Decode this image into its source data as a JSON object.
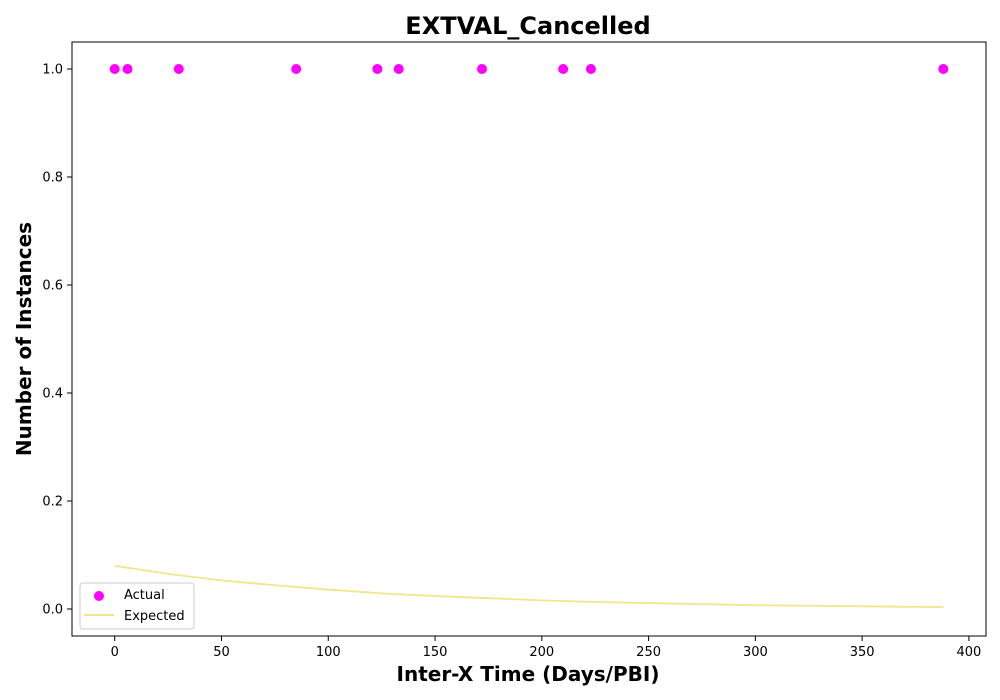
{
  "chart_data": {
    "type": "scatter",
    "title": "EXTVAL_Cancelled",
    "xlabel": "Inter-X Time (Days/PBI)",
    "ylabel": "Number of Instances",
    "xlim": [
      -20,
      408
    ],
    "ylim": [
      -0.05,
      1.05
    ],
    "xticks": [
      0,
      50,
      100,
      150,
      200,
      250,
      300,
      350,
      400
    ],
    "yticks": [
      0.0,
      0.2,
      0.4,
      0.6,
      0.8,
      1.0
    ],
    "xtick_labels": [
      "0",
      "50",
      "100",
      "150",
      "200",
      "250",
      "300",
      "350",
      "400"
    ],
    "ytick_labels": [
      "0.0",
      "0.2",
      "0.4",
      "0.6",
      "0.8",
      "1.0"
    ],
    "grid": false,
    "legend_position": "lower-left",
    "series": [
      {
        "name": "Actual",
        "kind": "scatter",
        "color": "#ff00ff",
        "x": [
          0,
          6,
          30,
          85,
          123,
          133,
          172,
          210,
          223,
          388
        ],
        "y": [
          1,
          1,
          1,
          1,
          1,
          1,
          1,
          1,
          1,
          1
        ]
      },
      {
        "name": "Expected",
        "kind": "line",
        "color": "#f0e68c",
        "x": [
          0,
          25,
          50,
          75,
          100,
          125,
          150,
          175,
          200,
          225,
          250,
          275,
          300,
          325,
          350,
          375,
          388
        ],
        "y": [
          0.08,
          0.065,
          0.053,
          0.044,
          0.036,
          0.029,
          0.024,
          0.02,
          0.016,
          0.013,
          0.011,
          0.009,
          0.007,
          0.006,
          0.005,
          0.004,
          0.0035
        ]
      }
    ]
  }
}
